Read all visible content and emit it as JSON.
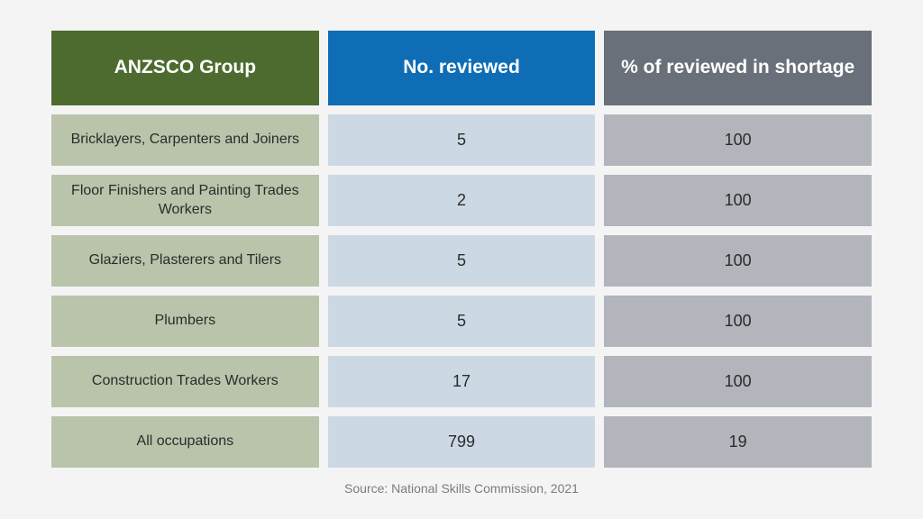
{
  "chart_data": {
    "type": "table",
    "columns": [
      "ANZSCO Group",
      "No. reviewed",
      "% of reviewed in shortage"
    ],
    "rows": [
      {
        "group": "Bricklayers, Carpenters and Joiners",
        "reviewed": "5",
        "shortage_pct": "100"
      },
      {
        "group": "Floor Finishers and Painting Trades Workers",
        "reviewed": "2",
        "shortage_pct": "100"
      },
      {
        "group": "Glaziers, Plasterers and Tilers",
        "reviewed": "5",
        "shortage_pct": "100"
      },
      {
        "group": "Plumbers",
        "reviewed": "5",
        "shortage_pct": "100"
      },
      {
        "group": "Construction Trades Workers",
        "reviewed": "17",
        "shortage_pct": "100"
      },
      {
        "group": "All occupations",
        "reviewed": "799",
        "shortage_pct": "19"
      }
    ]
  },
  "source": "Source: National Skills Commission, 2021",
  "colors": {
    "header_group": "#4e6b2f",
    "header_reviewed": "#0f6db6",
    "header_shortage": "#697079",
    "cell_group": "#b9c4ab",
    "cell_reviewed": "#ccd9e4",
    "cell_shortage": "#b2b5bb"
  }
}
